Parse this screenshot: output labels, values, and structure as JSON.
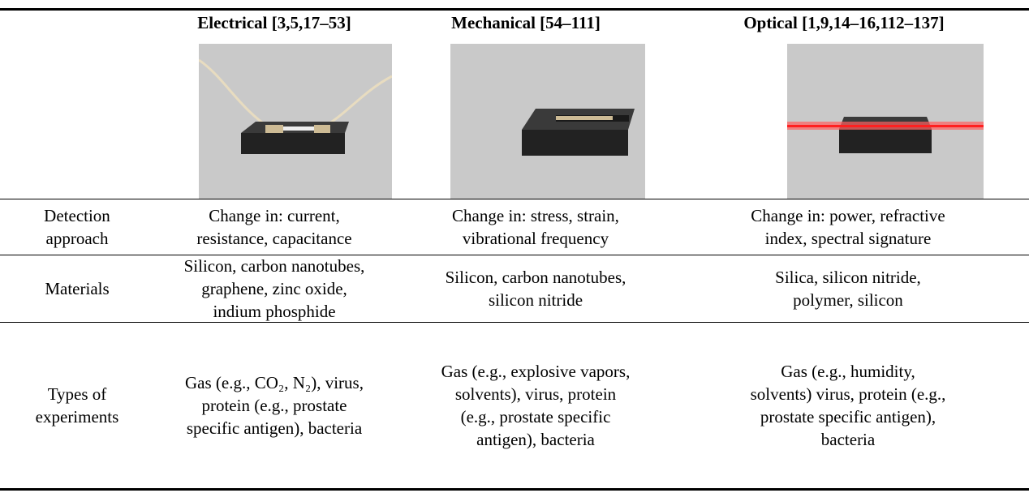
{
  "table": {
    "header": [
      "Electrical [3,5,17–53]",
      "Mechanical [54–111]",
      "Optical [1,9,14–16,112–137]"
    ],
    "rows": [
      {
        "label": [
          "Detection",
          "approach"
        ],
        "cells": [
          [
            "Change in: current,",
            "resistance, capacitance"
          ],
          [
            "Change in: stress, strain,",
            "vibrational frequency"
          ],
          [
            "Change in: power, refractive",
            "index, spectral signature"
          ]
        ]
      },
      {
        "label": [
          "Materials"
        ],
        "cells": [
          [
            "Silicon, carbon nanotubes,",
            "graphene, zinc oxide,",
            "indium phosphide"
          ],
          [
            "Silicon, carbon nanotubes,",
            "silicon nitride"
          ],
          [
            "Silica, silicon nitride,",
            "polymer, silicon"
          ]
        ]
      },
      {
        "label": [
          "Types of",
          "experiments"
        ],
        "cells": [
          [
            "Gas (e.g., CO₂, N₂), virus,",
            "protein (e.g., prostate",
            "specific antigen), bacteria"
          ],
          [
            "Gas (e.g., explosive vapors,",
            "solvents), virus, protein",
            "(e.g., prostate specific",
            "antigen), bacteria"
          ],
          [
            "Gas (e.g., humidity,",
            "solvents) virus, protein (e.g.,",
            "prostate specific antigen),",
            "bacteria"
          ]
        ]
      }
    ]
  }
}
